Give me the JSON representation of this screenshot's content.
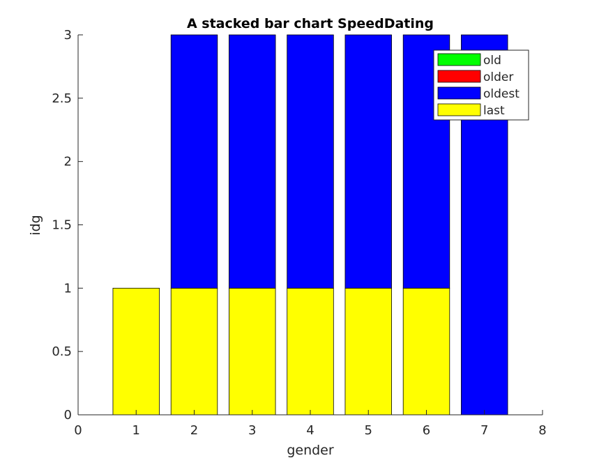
{
  "chart_data": {
    "type": "bar",
    "stacked": true,
    "title": "A stacked bar chart SpeedDating",
    "xlabel": "gender",
    "ylabel": "idg",
    "xlim": [
      0,
      8
    ],
    "ylim": [
      0,
      3
    ],
    "xticks": [
      "0",
      "1",
      "2",
      "3",
      "4",
      "5",
      "6",
      "7",
      "8"
    ],
    "yticks": [
      "0",
      "0.5",
      "1",
      "1.5",
      "2",
      "2.5",
      "3"
    ],
    "x": [
      1,
      2,
      3,
      4,
      5,
      6,
      7
    ],
    "series": [
      {
        "name": "old",
        "color": "#00ff00",
        "values": [
          0,
          0,
          0,
          0,
          0,
          0,
          0
        ]
      },
      {
        "name": "older",
        "color": "#ff0000",
        "values": [
          0,
          0,
          0,
          0,
          0,
          0,
          0
        ]
      },
      {
        "name": "oldest",
        "color": "#0000ff",
        "values": [
          0,
          2,
          2,
          2,
          2,
          2,
          3
        ]
      },
      {
        "name": "last",
        "color": "#ffff00",
        "values": [
          1,
          1,
          1,
          1,
          1,
          1,
          0
        ]
      }
    ],
    "stack_order": [
      "last",
      "oldest",
      "older",
      "old"
    ],
    "legend_position": "top-right",
    "grid": false
  }
}
